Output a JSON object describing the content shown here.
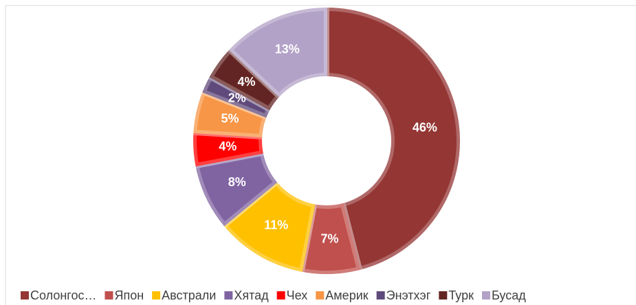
{
  "chart_data": {
    "type": "donut",
    "categories": [
      "Солонгос…",
      "Япон",
      "Австрали",
      "Хятад",
      "Чех",
      "Америк",
      "Энэтхэг",
      "Турк",
      "Бусад"
    ],
    "values": [
      46,
      7,
      11,
      8,
      4,
      5,
      2,
      4,
      13
    ],
    "value_labels": [
      "46%",
      "7%",
      "11%",
      "8%",
      "4%",
      "5%",
      "2%",
      "4%",
      "13%"
    ],
    "colors": [
      "#943634",
      "#c0504d",
      "#ffc000",
      "#8064a2",
      "#ff0000",
      "#f79646",
      "#604a7b",
      "#632523",
      "#b3a2c7"
    ],
    "legend": "bottom"
  }
}
